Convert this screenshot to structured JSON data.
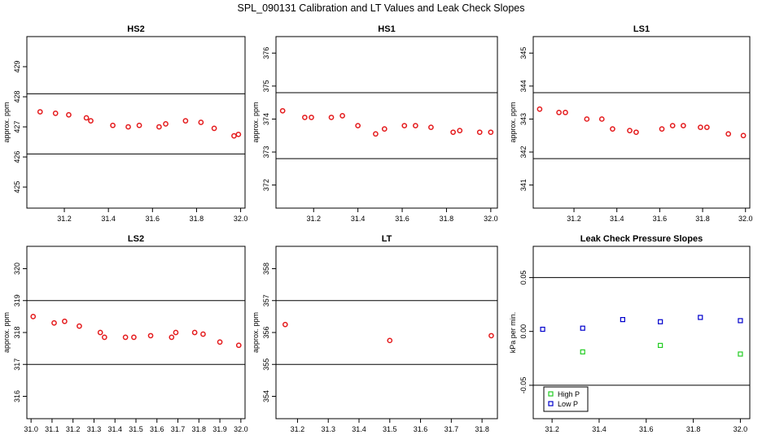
{
  "title": "SPL_090131  Calibration and LT Values and Leak Check Slopes",
  "colors": {
    "red": "#e41a1c",
    "green": "#22cc22",
    "blue": "#0000cc",
    "refline": "#000000"
  },
  "chart_data": [
    {
      "type": "scatter",
      "title": "HS2",
      "ylabel": "approx. ppm",
      "xlim": [
        31.03,
        32.02
      ],
      "ylim": [
        424.3,
        430.0
      ],
      "xticks": [
        "31.2",
        "31.4",
        "31.6",
        "31.8",
        "32.0"
      ],
      "yticks": [
        "425",
        "426",
        "427",
        "428",
        "429"
      ],
      "hlines": [
        428.1,
        426.1
      ],
      "series": [
        {
          "color": "red",
          "x": [
            31.09,
            31.16,
            31.22,
            31.3,
            31.32,
            31.42,
            31.49,
            31.54,
            31.63,
            31.66,
            31.75,
            31.82,
            31.88,
            31.97,
            31.99
          ],
          "y": [
            427.5,
            427.45,
            427.4,
            427.3,
            427.2,
            427.05,
            427.0,
            427.05,
            427.0,
            427.1,
            427.2,
            427.15,
            426.95,
            426.7,
            426.75
          ]
        }
      ]
    },
    {
      "type": "scatter",
      "title": "HS1",
      "ylabel": "approx. ppm",
      "xlim": [
        31.03,
        32.03
      ],
      "ylim": [
        371.3,
        376.5
      ],
      "xticks": [
        "31.2",
        "31.4",
        "31.6",
        "31.8",
        "32.0"
      ],
      "yticks": [
        "372",
        "373",
        "374",
        "375",
        "376"
      ],
      "hlines": [
        374.8,
        372.8
      ],
      "series": [
        {
          "color": "red",
          "x": [
            31.06,
            31.16,
            31.19,
            31.28,
            31.33,
            31.4,
            31.48,
            31.52,
            31.61,
            31.66,
            31.73,
            31.83,
            31.86,
            31.95,
            32.0
          ],
          "y": [
            374.25,
            374.05,
            374.05,
            374.05,
            374.1,
            373.8,
            373.55,
            373.7,
            373.8,
            373.8,
            373.75,
            373.6,
            373.65,
            373.6,
            373.6
          ]
        }
      ]
    },
    {
      "type": "scatter",
      "title": "LS1",
      "ylabel": "approx. ppm",
      "xlim": [
        31.01,
        32.02
      ],
      "ylim": [
        340.3,
        345.5
      ],
      "xticks": [
        "31.2",
        "31.4",
        "31.6",
        "31.8",
        "32.0"
      ],
      "yticks": [
        "341",
        "342",
        "343",
        "344",
        "345"
      ],
      "hlines": [
        343.8,
        341.8
      ],
      "series": [
        {
          "color": "red",
          "x": [
            31.04,
            31.13,
            31.16,
            31.26,
            31.33,
            31.38,
            31.46,
            31.49,
            31.61,
            31.66,
            31.71,
            31.79,
            31.82,
            31.92,
            31.99
          ],
          "y": [
            343.3,
            343.2,
            343.2,
            343.0,
            343.0,
            342.7,
            342.65,
            342.6,
            342.7,
            342.8,
            342.8,
            342.75,
            342.75,
            342.55,
            342.5
          ]
        }
      ]
    },
    {
      "type": "scatter",
      "title": "LS2",
      "ylabel": "approx. ppm",
      "xlim": [
        30.98,
        32.02
      ],
      "ylim": [
        315.3,
        320.7
      ],
      "xticks": [
        "31.0",
        "31.1",
        "31.2",
        "31.3",
        "31.4",
        "31.5",
        "31.6",
        "31.7",
        "31.8",
        "31.9",
        "32.0"
      ],
      "yticks": [
        "316",
        "317",
        "318",
        "319",
        "320"
      ],
      "hlines": [
        319.0,
        317.0
      ],
      "series": [
        {
          "color": "red",
          "x": [
            31.01,
            31.11,
            31.16,
            31.23,
            31.33,
            31.35,
            31.45,
            31.49,
            31.57,
            31.67,
            31.69,
            31.78,
            31.82,
            31.9,
            31.99
          ],
          "y": [
            318.5,
            318.3,
            318.35,
            318.2,
            318.0,
            317.85,
            317.85,
            317.85,
            317.9,
            317.85,
            318.0,
            318.0,
            317.95,
            317.7,
            317.6
          ]
        }
      ]
    },
    {
      "type": "scatter",
      "title": "LT",
      "ylabel": "approx. ppm",
      "xlim": [
        31.13,
        31.85
      ],
      "ylim": [
        353.3,
        358.7
      ],
      "xticks": [
        "31.2",
        "31.3",
        "31.4",
        "31.5",
        "31.6",
        "31.7",
        "31.8"
      ],
      "yticks": [
        "354",
        "355",
        "356",
        "357",
        "358"
      ],
      "hlines": [
        357.0,
        355.0
      ],
      "series": [
        {
          "color": "red",
          "x": [
            31.16,
            31.5,
            31.83
          ],
          "y": [
            356.25,
            355.75,
            355.9
          ]
        }
      ]
    },
    {
      "type": "scatter",
      "title": "Leak Check Pressure Slopes",
      "ylabel": "kPa per min.",
      "xlim": [
        31.12,
        32.04
      ],
      "ylim": [
        -0.081,
        0.079
      ],
      "xticks": [
        "31.2",
        "31.4",
        "31.6",
        "31.8",
        "32.0"
      ],
      "yticks": [
        "-0.05",
        "0.00",
        "0.05"
      ],
      "hlines": [
        0.05,
        -0.05
      ],
      "series": [
        {
          "name": "High P",
          "color": "green",
          "x": [
            31.33,
            31.66,
            32.0
          ],
          "y": [
            -0.019,
            -0.013,
            -0.021
          ]
        },
        {
          "name": "Low P",
          "color": "blue",
          "x": [
            31.16,
            31.33,
            31.5,
            31.66,
            31.83,
            32.0
          ],
          "y": [
            0.002,
            0.003,
            0.011,
            0.009,
            0.013,
            0.01
          ]
        }
      ],
      "legend": "bottom-left"
    }
  ]
}
